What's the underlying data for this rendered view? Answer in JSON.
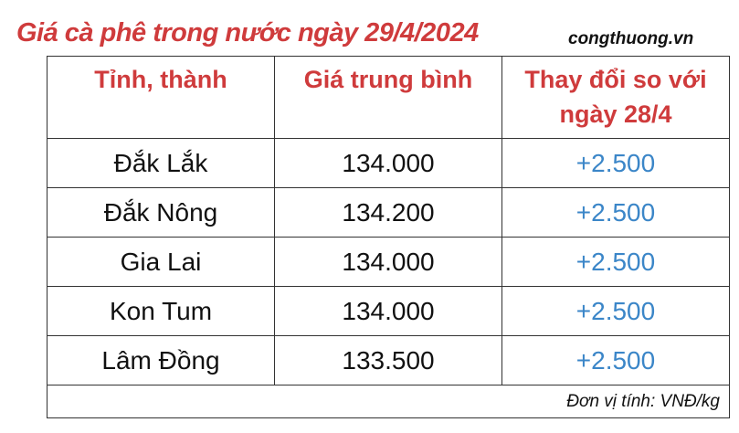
{
  "title": "Giá cà phê trong nước ngày 29/4/2024",
  "brand": "congthuong.vn",
  "colors": {
    "header": "#cf3b3c",
    "change": "#3b86c8"
  },
  "table": {
    "headers": [
      "Tỉnh, thành",
      "Giá trung bình",
      "Thay đổi so với ngày 28/4"
    ],
    "rows": [
      [
        "Đắk Lắk",
        "134.000",
        "+2.500"
      ],
      [
        "Đắk Nông",
        "134.200",
        "+2.500"
      ],
      [
        "Gia Lai",
        "134.000",
        "+2.500"
      ],
      [
        "Kon Tum",
        "134.000",
        "+2.500"
      ],
      [
        "Lâm Đồng",
        "133.500",
        "+2.500"
      ]
    ],
    "unit_note": "Đơn vị tính: VNĐ/kg"
  }
}
